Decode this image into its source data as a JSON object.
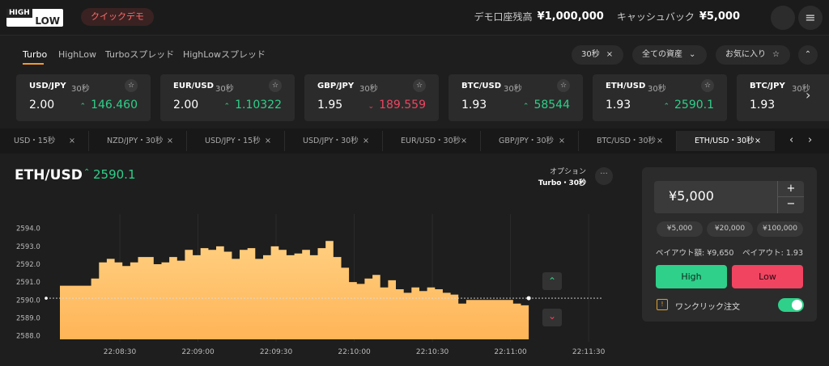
{
  "header": {
    "logo_top": "HIGH",
    "logo_bottom": "LOW",
    "demo_button": "クイックデモ",
    "balance_label": "デモ口座残高",
    "balance": "¥1,000,000",
    "cashback_label": "キャッシュバック",
    "cashback": "¥5,000"
  },
  "tabs": [
    "Turbo",
    "HighLow",
    "Turboスプレッド",
    "HighLowスプレッド"
  ],
  "filters": {
    "duration": "30秒",
    "assets": "全ての資産",
    "favorites": "お気に入り"
  },
  "cards": [
    {
      "name": "USD/JPY",
      "duration": "30秒",
      "payout": "2.00",
      "rate": "146.460",
      "trend": "up"
    },
    {
      "name": "EUR/USD",
      "duration": "30秒",
      "payout": "2.00",
      "rate": "1.10322",
      "trend": "up"
    },
    {
      "name": "GBP/JPY",
      "duration": "30秒",
      "payout": "1.95",
      "rate": "189.559",
      "trend": "down"
    },
    {
      "name": "BTC/USD",
      "duration": "30秒",
      "payout": "1.93",
      "rate": "58544",
      "trend": "up"
    },
    {
      "name": "ETH/USD",
      "duration": "30秒",
      "payout": "1.93",
      "rate": "2590.1",
      "trend": "up"
    },
    {
      "name": "BTC/JPY",
      "duration": "30秒",
      "payout": "1.93"
    }
  ],
  "option_tabs": [
    "USD・15秒",
    "NZD/JPY・30秒",
    "USD/JPY・15秒",
    "USD/JPY・30秒",
    "EUR/USD・30秒",
    "GBP/JPY・30秒",
    "BTC/USD・30秒",
    "ETH/USD・30秒"
  ],
  "chart_panel": {
    "price": "2590.1",
    "option_label": "オプション",
    "option_value": "Turbo・30秒"
  },
  "chart_data": {
    "type": "area",
    "title": "ETH/USD",
    "color": "#ffc067",
    "x": [
      "22:08:07",
      "22:08:10",
      "22:08:13",
      "22:08:16",
      "22:08:19",
      "22:08:22",
      "22:08:25",
      "22:08:28",
      "22:08:31",
      "22:08:34",
      "22:08:37",
      "22:08:40",
      "22:08:43",
      "22:08:46",
      "22:08:49",
      "22:08:52",
      "22:08:55",
      "22:08:58",
      "22:09:01",
      "22:09:04",
      "22:09:07",
      "22:09:10",
      "22:09:13",
      "22:09:16",
      "22:09:19",
      "22:09:22",
      "22:09:25",
      "22:09:28",
      "22:09:31",
      "22:09:34",
      "22:09:37",
      "22:09:40",
      "22:09:43",
      "22:09:46",
      "22:09:49",
      "22:09:52",
      "22:09:55",
      "22:09:58",
      "22:10:01",
      "22:10:04",
      "22:10:07",
      "22:10:10",
      "22:10:13",
      "22:10:16",
      "22:10:19",
      "22:10:22",
      "22:10:25",
      "22:10:28",
      "22:10:31",
      "22:10:34",
      "22:10:37",
      "22:10:40",
      "22:10:43",
      "22:10:46",
      "22:10:49",
      "22:10:52",
      "22:10:55",
      "22:10:58",
      "22:11:01",
      "22:11:04",
      "22:11:07"
    ],
    "values": [
      2590.8,
      2590.8,
      2590.8,
      2590.8,
      2591.2,
      2592.1,
      2592.3,
      2592.1,
      2591.9,
      2592.1,
      2592.4,
      2592.4,
      2592.0,
      2592.1,
      2592.4,
      2592.2,
      2592.8,
      2592.5,
      2592.9,
      2592.8,
      2593.0,
      2592.7,
      2592.3,
      2592.8,
      2592.9,
      2592.3,
      2592.5,
      2593.0,
      2592.8,
      2592.5,
      2592.6,
      2592.8,
      2592.5,
      2592.9,
      2593.3,
      2592.4,
      2591.8,
      2591.0,
      2590.9,
      2591.2,
      2591.4,
      2590.7,
      2591.1,
      2590.6,
      2590.4,
      2590.7,
      2590.5,
      2590.7,
      2590.6,
      2590.4,
      2590.3,
      2589.8,
      2590.0,
      2590.0,
      2590.0,
      2590.0,
      2590.0,
      2590.0,
      2589.8,
      2589.7,
      2590.1
    ],
    "xlim": [
      "22:08:00",
      "22:11:36"
    ],
    "xticks": [
      "22:08:30",
      "22:09:00",
      "22:09:30",
      "22:10:00",
      "22:10:30",
      "22:11:00",
      "22:11:30"
    ],
    "ylim": [
      2587.8,
      2594.8
    ],
    "yticks": [
      {
        "value": 2588,
        "label": "2588.0"
      },
      {
        "value": 2589,
        "label": "2589.0"
      },
      {
        "value": 2590,
        "label": "2590.0"
      },
      {
        "value": 2591,
        "label": "2591.0"
      },
      {
        "value": 2592,
        "label": "2592.0"
      },
      {
        "value": 2593,
        "label": "2593.0"
      },
      {
        "value": 2594,
        "label": "2594.0"
      }
    ]
  },
  "trade_panel": {
    "amount": "¥5,000",
    "presets": [
      "¥5,000",
      "¥20,000",
      "¥100,000"
    ],
    "payout_amount": "ペイアウト額: ¥9,650",
    "payout_rate": "ペイアウト: 1.93",
    "high": "High",
    "low": "Low",
    "one_click": "ワンクリック注文",
    "one_click_on": true
  }
}
